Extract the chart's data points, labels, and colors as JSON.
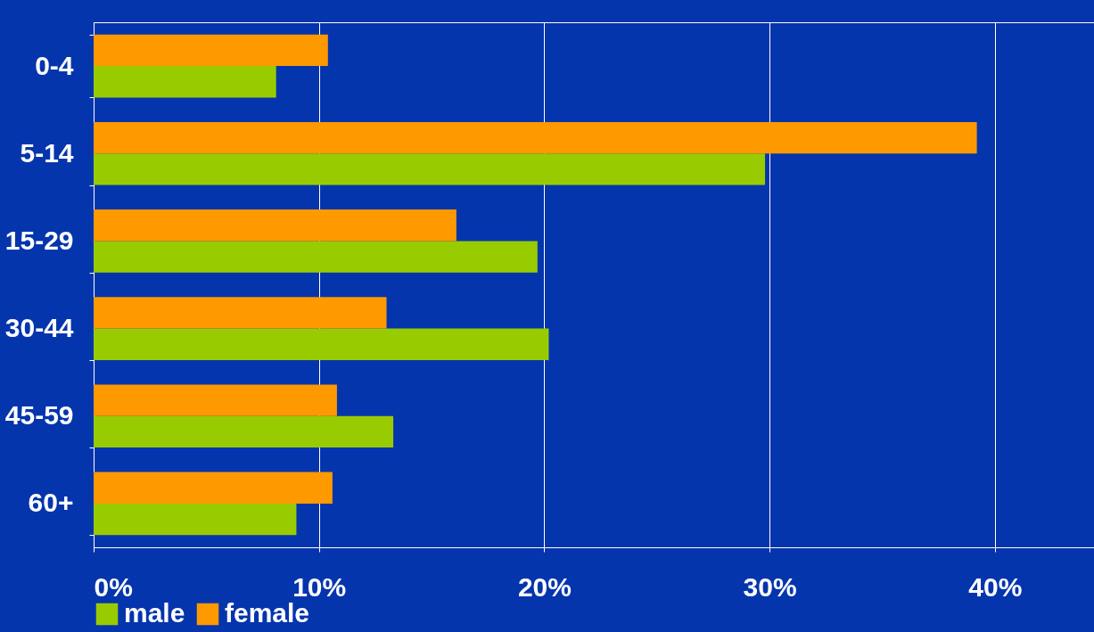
{
  "chart_data": {
    "type": "bar",
    "orientation": "horizontal",
    "categories": [
      "0-4",
      "5-14",
      "15-29",
      "30-44",
      "45-59",
      "60+"
    ],
    "series": [
      {
        "name": "male",
        "color": "#99cc00",
        "values": [
          8.1,
          29.8,
          19.7,
          20.2,
          13.3,
          9.0
        ]
      },
      {
        "name": "female",
        "color": "#ff9900",
        "values": [
          10.4,
          39.2,
          16.1,
          13.0,
          10.8,
          10.6
        ]
      }
    ],
    "xlim": [
      0,
      44.4
    ],
    "xticks": [
      {
        "value": 0,
        "label": "0%"
      },
      {
        "value": 10,
        "label": "10%"
      },
      {
        "value": 20,
        "label": "20%"
      },
      {
        "value": 30,
        "label": "30%"
      },
      {
        "value": 40,
        "label": "40%"
      }
    ],
    "grid": "x",
    "legend": "bottom left"
  }
}
